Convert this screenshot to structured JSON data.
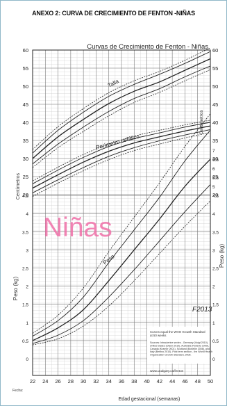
{
  "document": {
    "heading": "ANEXO 2: CURVA DE CRECIMIENTO DE FENTON -NIÑAS"
  },
  "chart_data": {
    "type": "line",
    "title": "Curvas de Crecimiento de Fenton -  Niñas",
    "xlabel": "Edad gestacional (semanas)",
    "ylabel_left_top": "Centímetros",
    "ylabel_right_top": "Centímetros",
    "ylabel_left_bottom": "Peso (kg)",
    "ylabel_right_bottom": "Peso (kg)",
    "watermark": "Niñas",
    "logo": "F2013",
    "date_label": "Fecha:",
    "xlim": [
      22,
      50
    ],
    "x_ticks": [
      22,
      24,
      26,
      28,
      30,
      32,
      34,
      36,
      38,
      40,
      42,
      44,
      46,
      48,
      50
    ],
    "cm_ticks": [
      20,
      25,
      30,
      35,
      40,
      45,
      50,
      55,
      60
    ],
    "kg_ticks": [
      0,
      0.5,
      1,
      1.5,
      2,
      2.5,
      3,
      3.5,
      4,
      4.5,
      5,
      5.5,
      6,
      6.5,
      7
    ],
    "grid": true,
    "curve_labels": {
      "talla": "Talla",
      "pc": "Perímetro cefálico",
      "peso": "Peso"
    },
    "notes": [
      "Curves equal the WHO Growth Standard",
      "at 50 weeks",
      "Sources: Intrauterine sexles - Germany (Voigt 2010),",
      "United States (Olsen 2010), Australia (Roberts 1999),",
      "Canada (Kramer 2001), Scotland (Bonellie 2008), and",
      "Italy (Bertino 2010). Post term section - the World Health",
      "Organization Growth Standard, 2006."
    ],
    "url": "www.ucalgary.ca/fenton",
    "percentiles": [
      "3",
      "10",
      "50",
      "90",
      "97"
    ],
    "x": [
      22,
      26,
      30,
      34,
      38,
      42,
      46,
      50
    ],
    "series": [
      {
        "name": "Talla",
        "unit": "cm",
        "curves": [
          [
            27.5,
            33.0,
            37.5,
            41.8,
            45.5,
            48.3,
            51.5,
            54.6
          ],
          [
            28.5,
            34.0,
            38.7,
            43.0,
            46.6,
            49.3,
            52.6,
            55.6
          ],
          [
            30.0,
            36.0,
            40.8,
            45.2,
            48.6,
            51.2,
            54.4,
            57.6
          ],
          [
            31.5,
            37.8,
            42.8,
            47.2,
            50.5,
            53.3,
            56.3,
            59.6
          ],
          [
            32.5,
            38.8,
            43.8,
            48.2,
            51.5,
            54.1,
            57.2,
            60.6
          ]
        ]
      },
      {
        "name": "Perímetro cefálico",
        "unit": "cm",
        "curves": [
          [
            19.5,
            23.2,
            26.6,
            29.7,
            32.2,
            34.0,
            35.7,
            37.2
          ],
          [
            20.5,
            24.1,
            27.5,
            30.6,
            33.0,
            34.9,
            36.5,
            38.0
          ],
          [
            21.8,
            25.5,
            29.0,
            32.0,
            34.3,
            36.0,
            37.6,
            39.0
          ],
          [
            23.0,
            26.8,
            30.3,
            33.3,
            35.5,
            37.1,
            38.7,
            40.0
          ],
          [
            23.8,
            27.6,
            31.1,
            34.0,
            36.2,
            37.8,
            39.3,
            40.6
          ]
        ]
      },
      {
        "name": "Peso",
        "unit": "kg",
        "curves": [
          [
            0.38,
            0.55,
            0.9,
            1.45,
            2.15,
            2.9,
            3.65,
            4.35
          ],
          [
            0.42,
            0.65,
            1.05,
            1.7,
            2.45,
            3.25,
            4.05,
            4.8
          ],
          [
            0.5,
            0.85,
            1.35,
            2.15,
            3.0,
            3.85,
            4.75,
            5.5
          ],
          [
            0.62,
            1.05,
            1.7,
            2.65,
            3.55,
            4.45,
            5.45,
            6.3
          ],
          [
            0.7,
            1.2,
            1.95,
            2.95,
            3.9,
            4.85,
            5.85,
            6.75
          ]
        ]
      }
    ],
    "colors": {
      "grid_major": "#555555",
      "grid_minor": "#cfcfcf",
      "curve": "#222222",
      "watermark": "#f06fa8"
    }
  }
}
